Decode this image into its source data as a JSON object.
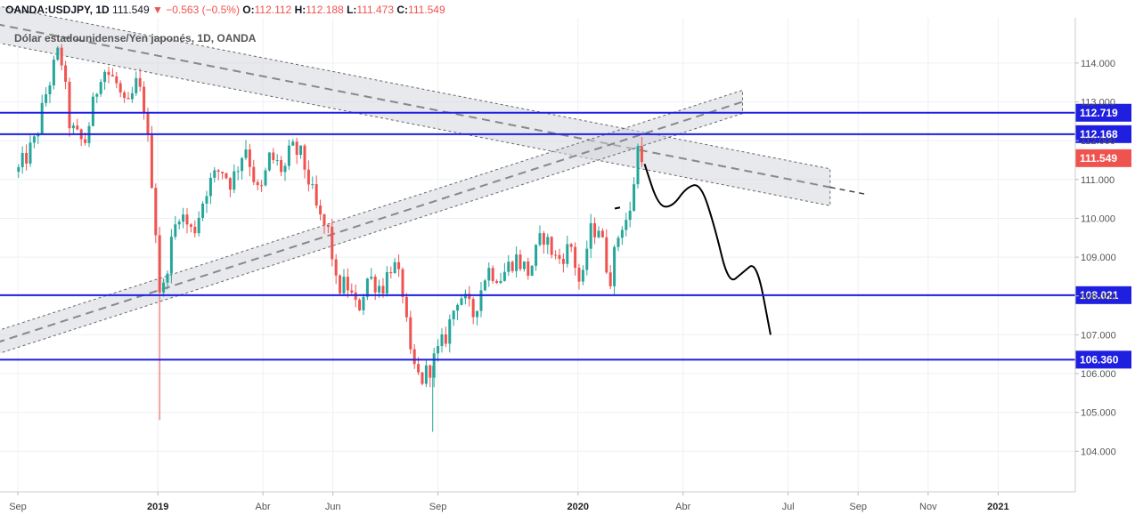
{
  "header": {
    "symbol": "OANDA:USDJPY, 1D",
    "last": "111.549",
    "change": "▼ −0.563 (−0.5%)",
    "o_label": "O:",
    "o_value": "112.112",
    "h_label": "H:",
    "h_value": "112.188",
    "l_label": "L:",
    "l_value": "111.473",
    "c_label": "C:",
    "c_value": "111.549"
  },
  "colors": {
    "up": "#26a69a",
    "down": "#ef5350",
    "level_line": "#1f1fe0",
    "channel_fill": "#d1d4dc",
    "last_price_bg": "#ef5350",
    "projection": "#000000"
  },
  "chart_data": {
    "type": "candlestick",
    "subtitle": "Dólar estadounidense/Yen japonés, 1D, OANDA",
    "ylim": [
      103.0,
      115.5
    ],
    "y_ticks": [
      "104.000",
      "105.000",
      "106.000",
      "107.000",
      "108.000",
      "109.000",
      "110.000",
      "111.000",
      "112.000",
      "113.000",
      "114.000"
    ],
    "x_ticks": [
      {
        "label": "Sep",
        "t": 0.0,
        "bold": false
      },
      {
        "label": "2019",
        "t": 4.0,
        "bold": true
      },
      {
        "label": "Abr",
        "t": 7.0,
        "bold": false
      },
      {
        "label": "Jun",
        "t": 9.0,
        "bold": false
      },
      {
        "label": "Sep",
        "t": 12.0,
        "bold": false
      },
      {
        "label": "2020",
        "t": 16.0,
        "bold": true
      },
      {
        "label": "Abr",
        "t": 19.0,
        "bold": false
      },
      {
        "label": "Jul",
        "t": 22.0,
        "bold": false
      },
      {
        "label": "Sep",
        "t": 24.0,
        "bold": false
      },
      {
        "label": "Nov",
        "t": 26.0,
        "bold": false
      },
      {
        "label": "2021",
        "t": 28.0,
        "bold": true
      }
    ],
    "price_path": [
      [
        0.0,
        111.2
      ],
      [
        0.5,
        112.0
      ],
      [
        0.8,
        113.2
      ],
      [
        1.2,
        114.4
      ],
      [
        1.5,
        112.3
      ],
      [
        1.9,
        111.9
      ],
      [
        2.4,
        113.9
      ],
      [
        2.8,
        113.5
      ],
      [
        3.1,
        112.7
      ],
      [
        3.4,
        113.5
      ],
      [
        3.6,
        112.9
      ],
      [
        3.9,
        110.4
      ],
      [
        4.0,
        108.6
      ],
      [
        4.1,
        107.8
      ],
      [
        4.3,
        109.0
      ],
      [
        4.6,
        110.2
      ],
      [
        5.0,
        109.6
      ],
      [
        5.4,
        110.8
      ],
      [
        5.8,
        111.3
      ],
      [
        6.1,
        110.9
      ],
      [
        6.5,
        111.9
      ],
      [
        6.9,
        110.5
      ],
      [
        7.2,
        111.6
      ],
      [
        7.6,
        111.2
      ],
      [
        7.8,
        111.8
      ],
      [
        8.1,
        111.6
      ],
      [
        8.3,
        111.0
      ],
      [
        8.6,
        110.0
      ],
      [
        8.9,
        109.6
      ],
      [
        9.1,
        108.2
      ],
      [
        9.4,
        108.3
      ],
      [
        9.7,
        107.6
      ],
      [
        10.0,
        108.5
      ],
      [
        10.4,
        108.2
      ],
      [
        10.7,
        108.9
      ],
      [
        11.0,
        108.1
      ],
      [
        11.2,
        106.4
      ],
      [
        11.5,
        105.8
      ],
      [
        11.8,
        106.2
      ],
      [
        12.2,
        106.9
      ],
      [
        12.6,
        108.1
      ],
      [
        13.0,
        107.5
      ],
      [
        13.4,
        108.7
      ],
      [
        13.8,
        108.5
      ],
      [
        14.2,
        109.0
      ],
      [
        14.6,
        108.6
      ],
      [
        15.0,
        109.6
      ],
      [
        15.4,
        108.9
      ],
      [
        15.8,
        109.3
      ],
      [
        16.1,
        108.1
      ],
      [
        16.3,
        109.6
      ],
      [
        16.6,
        109.8
      ],
      [
        16.9,
        108.4
      ],
      [
        17.2,
        109.8
      ],
      [
        17.5,
        110.1
      ],
      [
        17.6,
        111.0
      ],
      [
        17.75,
        112.1
      ],
      [
        17.85,
        111.55
      ]
    ],
    "channels": [
      {
        "name": "down",
        "p1": [
          -0.6,
          115.0
        ],
        "p2": [
          23.2,
          110.8
        ],
        "w": 0.95
      },
      {
        "name": "up",
        "p1": [
          -0.6,
          106.8
        ],
        "p2": [
          20.7,
          113.0
        ],
        "w": 0.6
      }
    ],
    "projection": [
      [
        17.9,
        111.4
      ],
      [
        18.3,
        110.3
      ],
      [
        18.7,
        110.3
      ],
      [
        19.1,
        110.8
      ],
      [
        19.5,
        110.9
      ],
      [
        19.9,
        109.8
      ],
      [
        20.3,
        108.3
      ],
      [
        20.7,
        108.6
      ],
      [
        21.1,
        108.9
      ],
      [
        21.5,
        107.0
      ]
    ],
    "levels": [
      {
        "value": 112.719,
        "label": "112.719"
      },
      {
        "value": 112.168,
        "label": "112.168"
      },
      {
        "value": 108.021,
        "label": "108.021"
      },
      {
        "value": 106.36,
        "label": "106.360"
      }
    ],
    "last_price": {
      "value": 111.549,
      "label": "111.549"
    }
  }
}
